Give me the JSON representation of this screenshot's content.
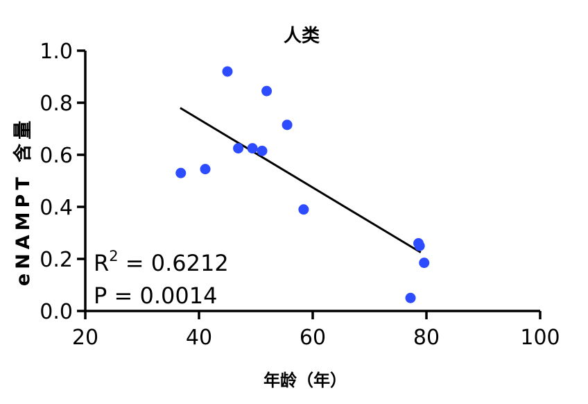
{
  "chart_data": {
    "type": "scatter",
    "title": "人类",
    "xlabel": "年龄（年）",
    "ylabel": "eNAMPT 含量",
    "xlim": [
      20,
      100
    ],
    "ylim": [
      0.0,
      1.0
    ],
    "xticks": [
      "20",
      "40",
      "60",
      "80",
      "100"
    ],
    "yticks": [
      "0.0",
      "0.2",
      "0.4",
      "0.6",
      "0.8",
      "1.0"
    ],
    "grid": false,
    "point_color": "#2e4cff",
    "points": [
      {
        "x": 36.8,
        "y": 0.53
      },
      {
        "x": 41.1,
        "y": 0.545
      },
      {
        "x": 45.0,
        "y": 0.92
      },
      {
        "x": 46.9,
        "y": 0.625
      },
      {
        "x": 49.4,
        "y": 0.625
      },
      {
        "x": 51.1,
        "y": 0.615
      },
      {
        "x": 51.9,
        "y": 0.845
      },
      {
        "x": 55.5,
        "y": 0.715
      },
      {
        "x": 58.4,
        "y": 0.39
      },
      {
        "x": 77.2,
        "y": 0.05
      },
      {
        "x": 78.6,
        "y": 0.26
      },
      {
        "x": 78.8,
        "y": 0.25
      },
      {
        "x": 79.6,
        "y": 0.185
      }
    ],
    "fit_line": {
      "x": [
        36.7,
        79.0
      ],
      "y": [
        0.78,
        0.225
      ]
    },
    "annotations": {
      "r2_label": "R",
      "r2_sup": "2",
      "r2_value": " = 0.6212",
      "p_text": "P = 0.0014"
    }
  }
}
